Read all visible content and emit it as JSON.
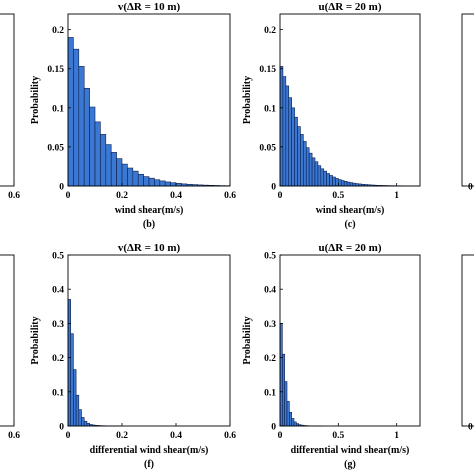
{
  "chart_data": [
    {
      "type": "bar",
      "panel": "",
      "title": "",
      "xlabel": "",
      "ylabel": "",
      "xlim": [
        0,
        0.6
      ],
      "ylim": [
        0,
        0.25
      ],
      "xticks": [
        "0.6"
      ],
      "yticks": [],
      "bin_width": 0.02,
      "values": [],
      "partial": true,
      "visible_fraction": [
        0.87,
        1.0
      ]
    },
    {
      "type": "bar",
      "panel": "(b)",
      "title": "v(ΔR = 10 m)",
      "xlabel": "wind shear(m/s)",
      "ylabel": "Probability",
      "xlim": [
        0,
        0.6
      ],
      "ylim": [
        0,
        0.22
      ],
      "xticks": [
        "0",
        "0.2",
        "0.4",
        "0.6"
      ],
      "yticks": [
        "0",
        "0.05",
        "0.1",
        "0.15",
        "0.2"
      ],
      "bin_width": 0.02,
      "values": [
        0.19,
        0.175,
        0.153,
        0.125,
        0.101,
        0.082,
        0.066,
        0.053,
        0.043,
        0.035,
        0.028,
        0.023,
        0.019,
        0.015,
        0.012,
        0.01,
        0.008,
        0.0065,
        0.0052,
        0.0042,
        0.0034,
        0.0027,
        0.0022,
        0.0018,
        0.0014,
        0.0011,
        0.0009,
        0.0007,
        0.0005,
        0.0004
      ]
    },
    {
      "type": "bar",
      "panel": "(c)",
      "title": "u(ΔR = 20 m)",
      "xlabel": "wind shear(m/s)",
      "ylabel": "Probability",
      "xlim": [
        0,
        1.2
      ],
      "ylim": [
        0,
        0.22
      ],
      "xticks": [
        "0",
        "0.5",
        "1"
      ],
      "yticks": [
        "0",
        "0.05",
        "0.1",
        "0.15",
        "0.2"
      ],
      "bin_width": 0.025,
      "values": [
        0.153,
        0.14,
        0.128,
        0.113,
        0.1,
        0.088,
        0.076,
        0.066,
        0.057,
        0.049,
        0.042,
        0.036,
        0.031,
        0.026,
        0.022,
        0.019,
        0.016,
        0.0135,
        0.0115,
        0.0097,
        0.0082,
        0.007,
        0.006,
        0.005,
        0.0043,
        0.0036,
        0.003,
        0.0026,
        0.0022,
        0.0019,
        0.0016,
        0.0013,
        0.0011,
        0.0009,
        0.0008,
        0.0007,
        0.0006,
        0.0005,
        0.0004,
        0.0004,
        0.0003,
        0.0003,
        0.0002,
        0.0002,
        0.0002,
        0.0001,
        0.0001,
        0.0001
      ]
    },
    {
      "type": "bar",
      "panel": "",
      "title": "",
      "xlabel": "",
      "ylabel": "",
      "xlim": [
        0,
        1
      ],
      "ylim": [
        0,
        0.25
      ],
      "xticks": [],
      "yticks": [
        "0"
      ],
      "values": [],
      "partial": true,
      "visible_fraction": [
        0,
        0.04
      ]
    },
    {
      "type": "bar",
      "panel": "",
      "title": "",
      "xlabel": "",
      "ylabel": "",
      "xlim": [
        0,
        0.6
      ],
      "ylim": [
        0,
        0.5
      ],
      "xticks": [
        "0.6"
      ],
      "yticks": [],
      "values": [],
      "partial": true,
      "visible_fraction": [
        0.87,
        1.0
      ]
    },
    {
      "type": "bar",
      "panel": "(f)",
      "title": "v(ΔR = 10 m)",
      "xlabel": "differential wind shear(m/s)",
      "ylabel": "Probability",
      "xlim": [
        0,
        0.6
      ],
      "ylim": [
        0,
        0.5
      ],
      "xticks": [
        "0",
        "0.2",
        "0.4",
        "0.6"
      ],
      "yticks": [
        "0",
        "0.1",
        "0.2",
        "0.3",
        "0.4",
        "0.5"
      ],
      "bin_width": 0.01,
      "values": [
        0.37,
        0.27,
        0.165,
        0.09,
        0.048,
        0.025,
        0.014,
        0.008,
        0.0045,
        0.003,
        0.002,
        0.0015,
        0.001,
        0.0008,
        0.0006,
        0.0005,
        0.0004,
        0.0003,
        0.0002,
        0.0002
      ]
    },
    {
      "type": "bar",
      "panel": "(g)",
      "title": "u(ΔR = 20 m)",
      "xlabel": "differential wind shear(m/s)",
      "ylabel": "Probability",
      "xlim": [
        0,
        1.2
      ],
      "ylim": [
        0,
        0.5
      ],
      "xticks": [
        "0",
        "0.5",
        "1"
      ],
      "yticks": [
        "0",
        "0.1",
        "0.2",
        "0.3",
        "0.4",
        "0.5"
      ],
      "bin_width": 0.02,
      "values": [
        0.3,
        0.21,
        0.13,
        0.072,
        0.04,
        0.022,
        0.012,
        0.007,
        0.004,
        0.0025,
        0.0016,
        0.001,
        0.0007,
        0.0005,
        0.0004,
        0.0003,
        0.0002,
        0.0002
      ]
    },
    {
      "type": "bar",
      "panel": "",
      "title": "",
      "xlabel": "",
      "ylabel": "",
      "xlim": [
        0,
        1
      ],
      "ylim": [
        0,
        0.5
      ],
      "xticks": [],
      "yticks": [
        "0"
      ],
      "values": [],
      "partial": true,
      "visible_fraction": [
        0,
        0.04
      ]
    }
  ]
}
